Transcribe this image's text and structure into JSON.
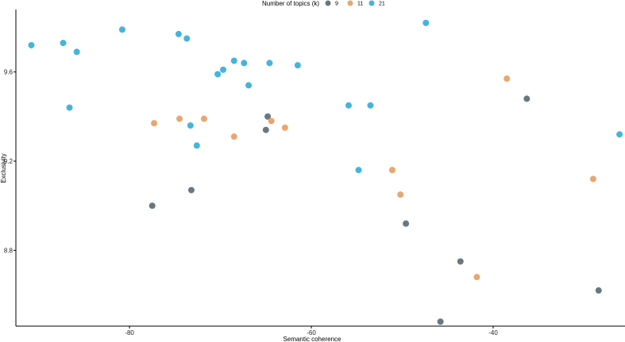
{
  "chart_data": {
    "type": "scatter",
    "title": "",
    "xlabel": "Semantic coherence",
    "ylabel": "Exclusivity",
    "xlim": [
      -92.5,
      -25.5
    ],
    "ylim": [
      8.46,
      9.88
    ],
    "xticks": [
      -80,
      -60,
      -40
    ],
    "yticks": [
      8.8,
      9.2,
      9.6
    ],
    "grid": false,
    "legend": {
      "title": "Number of topics (k)",
      "placement": "top-center",
      "entries": [
        "9",
        "11",
        "21"
      ]
    },
    "colors": {
      "9": "#687880",
      "11": "#e8a670",
      "21": "#45b4dc"
    },
    "series": [
      {
        "name": "9",
        "color": "#687880",
        "points": [
          [
            -77.5,
            9.0
          ],
          [
            -73.2,
            9.07
          ],
          [
            -64.8,
            9.4
          ],
          [
            -65.0,
            9.34
          ],
          [
            -49.6,
            8.92
          ],
          [
            -36.3,
            9.48
          ],
          [
            -43.6,
            8.75
          ],
          [
            -45.8,
            8.48
          ],
          [
            -28.4,
            8.62
          ]
        ]
      },
      {
        "name": "11",
        "color": "#e8a670",
        "points": [
          [
            -77.3,
            9.37
          ],
          [
            -74.5,
            9.39
          ],
          [
            -71.8,
            9.39
          ],
          [
            -68.5,
            9.31
          ],
          [
            -64.4,
            9.38
          ],
          [
            -62.9,
            9.35
          ],
          [
            -51.1,
            9.16
          ],
          [
            -50.2,
            9.05
          ],
          [
            -41.8,
            8.68
          ],
          [
            -38.5,
            9.57
          ],
          [
            -29.0,
            9.12
          ]
        ]
      },
      {
        "name": "21",
        "color": "#45b4dc",
        "points": [
          [
            -90.8,
            9.72
          ],
          [
            -87.3,
            9.73
          ],
          [
            -85.8,
            9.69
          ],
          [
            -86.6,
            9.44
          ],
          [
            -80.8,
            9.79
          ],
          [
            -74.6,
            9.77
          ],
          [
            -73.7,
            9.75
          ],
          [
            -73.3,
            9.36
          ],
          [
            -72.6,
            9.27
          ],
          [
            -70.3,
            9.59
          ],
          [
            -69.7,
            9.61
          ],
          [
            -68.5,
            9.65
          ],
          [
            -67.4,
            9.64
          ],
          [
            -66.9,
            9.54
          ],
          [
            -64.6,
            9.64
          ],
          [
            -61.5,
            9.63
          ],
          [
            -55.9,
            9.45
          ],
          [
            -53.5,
            9.45
          ],
          [
            -54.8,
            9.16
          ],
          [
            -47.4,
            9.82
          ],
          [
            -26.1,
            9.32
          ]
        ]
      }
    ]
  }
}
